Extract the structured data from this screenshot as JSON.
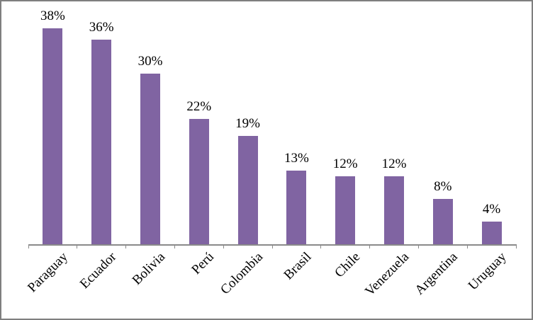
{
  "chart_data": {
    "type": "bar",
    "title": "",
    "xlabel": "",
    "ylabel": "",
    "categories": [
      "Paraguay",
      "Ecuador",
      "Bolivia",
      "Perú",
      "Colombia",
      "Brasil",
      "Chile",
      "Venezuela",
      "Argentina",
      "Uruguay"
    ],
    "values": [
      38,
      36,
      30,
      22,
      19,
      13,
      12,
      12,
      8,
      4
    ],
    "data_labels": [
      "38%",
      "36%",
      "30%",
      "22%",
      "19%",
      "13%",
      "12%",
      "12%",
      "8%",
      "4%"
    ],
    "value_unit": "%",
    "ylim": [
      0,
      40
    ],
    "grid": false,
    "legend": false,
    "x_axis_labels_rotation_deg": -45
  },
  "colors": {
    "bar": "#8064A2",
    "axis": "#8a8a8a",
    "frame_border": "#7f7f7f",
    "text": "#000000",
    "background": "#ffffff"
  }
}
